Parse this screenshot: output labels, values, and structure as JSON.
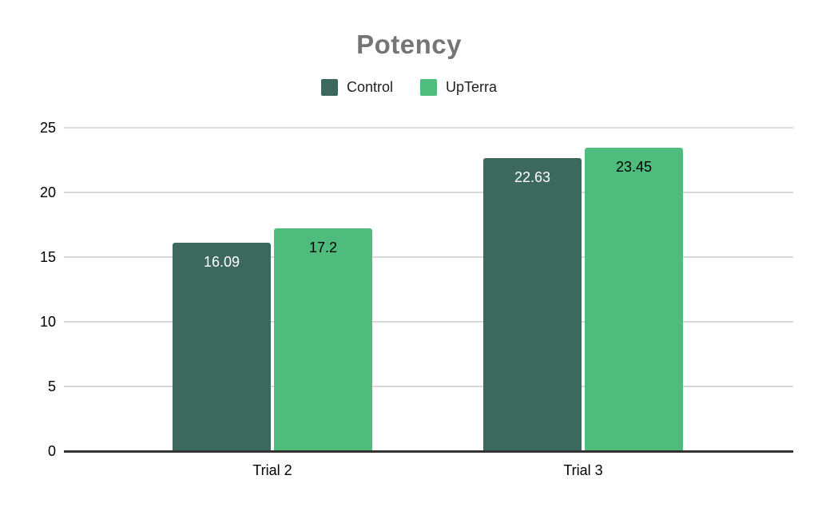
{
  "chart_data": {
    "type": "bar",
    "title": "Potency",
    "title_color": "#757575",
    "categories": [
      "Trial 2",
      "Trial 3"
    ],
    "series": [
      {
        "name": "Control",
        "color": "#3d685d",
        "values": [
          16.09,
          22.63
        ],
        "label_color": "#ffffff"
      },
      {
        "name": "UpTerra",
        "color": "#4fbc7d",
        "values": [
          17.2,
          23.45
        ],
        "label_color": "#000000"
      }
    ],
    "value_labels": [
      [
        "16.09",
        "17.2"
      ],
      [
        "22.63",
        "23.45"
      ]
    ],
    "xlabel": "",
    "ylabel": "",
    "ylim": [
      0,
      25
    ],
    "yticks": [
      0,
      5,
      10,
      15,
      20,
      25
    ],
    "grid": true,
    "legend_position": "top",
    "gridline_color": "#d9d9d9",
    "baseline_color": "#333333",
    "axis_text_color": "#000000",
    "background": "#ffffff"
  }
}
